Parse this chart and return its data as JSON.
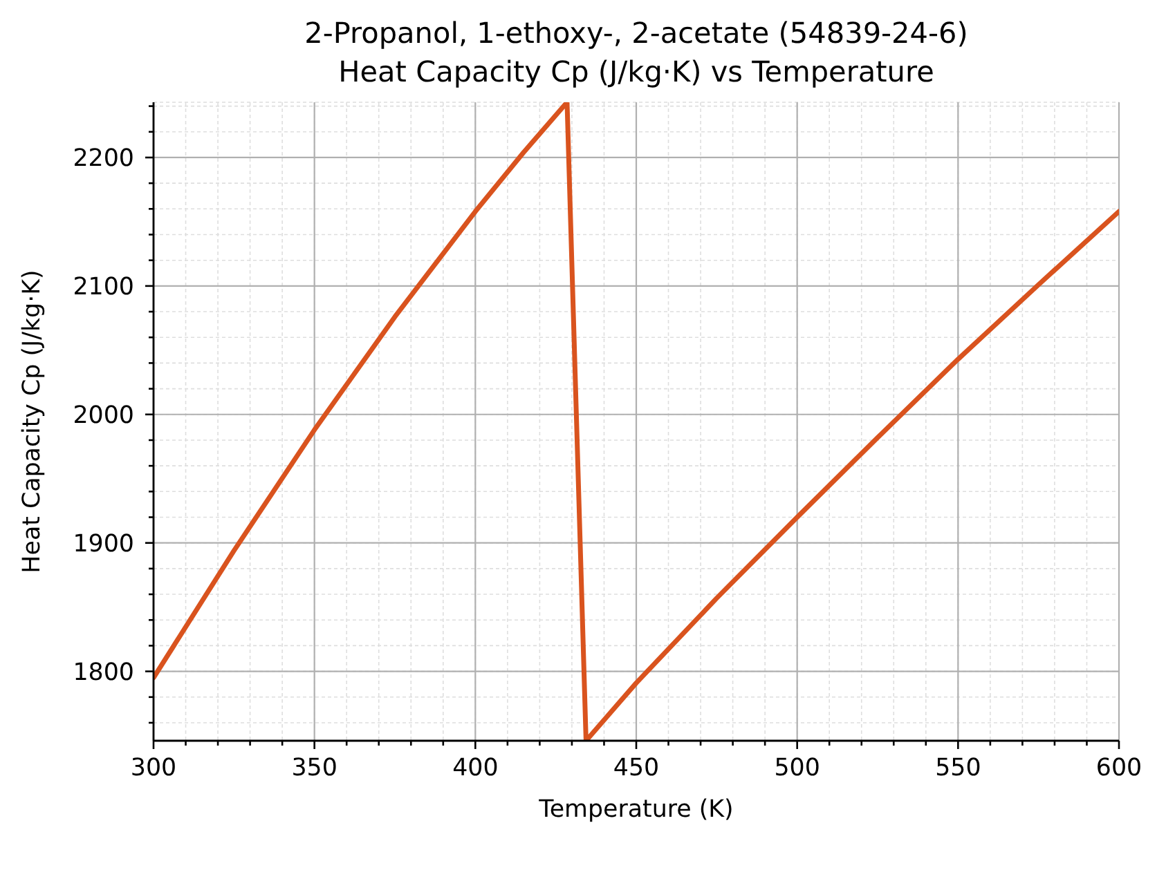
{
  "chart_data": {
    "type": "line",
    "title": "2-Propanol, 1-ethoxy-, 2-acetate (54839-24-6)",
    "subtitle": "Heat Capacity Cp (J/kg·K) vs Temperature",
    "xlabel": "Temperature (K)",
    "ylabel": "Heat Capacity Cp (J/kg·K)",
    "x": [
      300,
      325,
      350,
      375,
      400,
      415,
      428.5,
      434.4,
      450,
      475,
      500,
      525,
      550,
      575,
      600
    ],
    "series": [
      {
        "color": "#d9531e",
        "values": [
          1795,
          1894,
          1988,
          2076,
          2158,
          2204,
          2243,
          1746,
          1791,
          1857,
          1920,
          1982,
          2043,
          2101,
          2158
        ]
      }
    ],
    "xlim": [
      300,
      600
    ],
    "ylim": [
      1746,
      2243
    ],
    "xticks": [
      300,
      {
        "value": 310,
        "label": null
      },
      {
        "value": 320,
        "label": null
      },
      {
        "value": 330,
        "label": null
      },
      {
        "value": 340,
        "label": null
      },
      350,
      {
        "value": 360,
        "label": null
      },
      {
        "value": 370,
        "label": null
      },
      {
        "value": 380,
        "label": null
      },
      {
        "value": 390,
        "label": null
      },
      400,
      {
        "value": 410,
        "label": null
      },
      {
        "value": 420,
        "label": null
      },
      {
        "value": 430,
        "label": null
      },
      {
        "value": 440,
        "label": null
      },
      450,
      {
        "value": 460,
        "label": null
      },
      {
        "value": 470,
        "label": null
      },
      {
        "value": 480,
        "label": null
      },
      {
        "value": 490,
        "label": null
      },
      500,
      {
        "value": 510,
        "label": null
      },
      {
        "value": 520,
        "label": null
      },
      {
        "value": 530,
        "label": null
      },
      {
        "value": 540,
        "label": null
      },
      550,
      {
        "value": 560,
        "label": null
      },
      {
        "value": 570,
        "label": null
      },
      {
        "value": 580,
        "label": null
      },
      {
        "value": 590,
        "label": null
      },
      600
    ],
    "yticks": [
      {
        "value": 1760,
        "label": null
      },
      {
        "value": 1780,
        "label": null
      },
      1800,
      {
        "value": 1820,
        "label": null
      },
      {
        "value": 1840,
        "label": null
      },
      {
        "value": 1860,
        "label": null
      },
      {
        "value": 1880,
        "label": null
      },
      1900,
      {
        "value": 1920,
        "label": null
      },
      {
        "value": 1940,
        "label": null
      },
      {
        "value": 1960,
        "label": null
      },
      {
        "value": 1980,
        "label": null
      },
      2000,
      {
        "value": 2020,
        "label": null
      },
      {
        "value": 2040,
        "label": null
      },
      {
        "value": 2060,
        "label": null
      },
      {
        "value": 2080,
        "label": null
      },
      2100,
      {
        "value": 2120,
        "label": null
      },
      {
        "value": 2140,
        "label": null
      },
      {
        "value": 2160,
        "label": null
      },
      {
        "value": 2180,
        "label": null
      },
      2200,
      {
        "value": 2220,
        "label": null
      },
      {
        "value": 2240,
        "label": null
      }
    ],
    "grid": true,
    "line_style": "solid"
  }
}
